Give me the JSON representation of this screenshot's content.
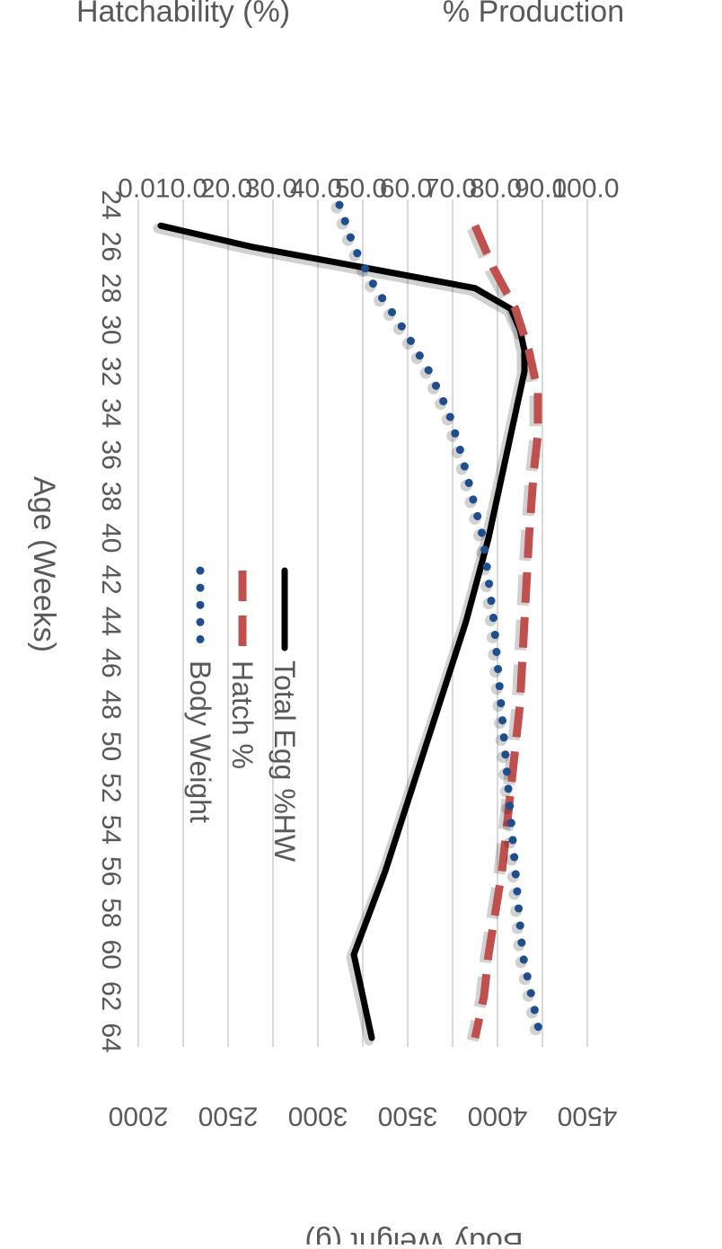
{
  "chart_data": {
    "type": "line",
    "orientation": "rotated-90-clockwise",
    "xlabel": "Age (Weeks)",
    "ylabel_left": [
      "% Production",
      "Hatchability (%)"
    ],
    "ylabel_right": "Body Weight (g)",
    "x_ticks": [
      "24",
      "26",
      "28",
      "30",
      "32",
      "34",
      "36",
      "38",
      "40",
      "42",
      "44",
      "46",
      "48",
      "50",
      "52",
      "54",
      "56",
      "58",
      "60",
      "62",
      "64"
    ],
    "y_left_range": [
      0,
      100
    ],
    "y_left_ticks": [
      "0.0",
      "10.0",
      "20.0",
      "30.0",
      "40.0",
      "50.0",
      "60.0",
      "70.0",
      "80.0",
      "90.0",
      "100.0"
    ],
    "y_right_range": [
      2000,
      4500
    ],
    "y_right_ticks": [
      "2000",
      "2500",
      "3000",
      "3500",
      "4000",
      "4500"
    ],
    "grid": true,
    "legend_position": "middle",
    "series": [
      {
        "name": "Total Egg %HW",
        "axis": "left",
        "color": "#000000",
        "style": "solid",
        "x": [
          25,
          26,
          27,
          28,
          29,
          30,
          31,
          32,
          34,
          36,
          40,
          44,
          48,
          52,
          56,
          60,
          64
        ],
        "y": [
          5,
          25,
          50,
          75,
          83,
          85,
          86,
          86,
          84,
          82,
          78,
          73,
          67,
          61,
          55,
          48,
          52
        ]
      },
      {
        "name": "Hatch %",
        "axis": "left",
        "color": "#C0504D",
        "style": "dashed",
        "x": [
          25,
          27,
          29,
          31,
          33,
          35,
          37,
          40,
          44,
          48,
          52,
          56,
          60,
          62,
          64
        ],
        "y": [
          75,
          79,
          84,
          87,
          89,
          89,
          88,
          87,
          86,
          85,
          83,
          81,
          78,
          77,
          75
        ]
      },
      {
        "name": "Body Weight",
        "axis": "right",
        "color": "#1F4E8C",
        "style": "dotted",
        "x": [
          24,
          26,
          28,
          30,
          32,
          34,
          36,
          38,
          40,
          44,
          48,
          52,
          56,
          60,
          64
        ],
        "y": [
          3120,
          3200,
          3320,
          3480,
          3620,
          3730,
          3800,
          3860,
          3920,
          3980,
          4020,
          4060,
          4100,
          4140,
          4240
        ]
      }
    ]
  },
  "legend": {
    "items": [
      {
        "label": "Total Egg %HW",
        "color": "#000000",
        "style": "solid"
      },
      {
        "label": "Hatch %",
        "color": "#C0504D",
        "style": "dashed"
      },
      {
        "label": "Body Weight",
        "color": "#1F4E8C",
        "style": "dotted"
      }
    ]
  }
}
